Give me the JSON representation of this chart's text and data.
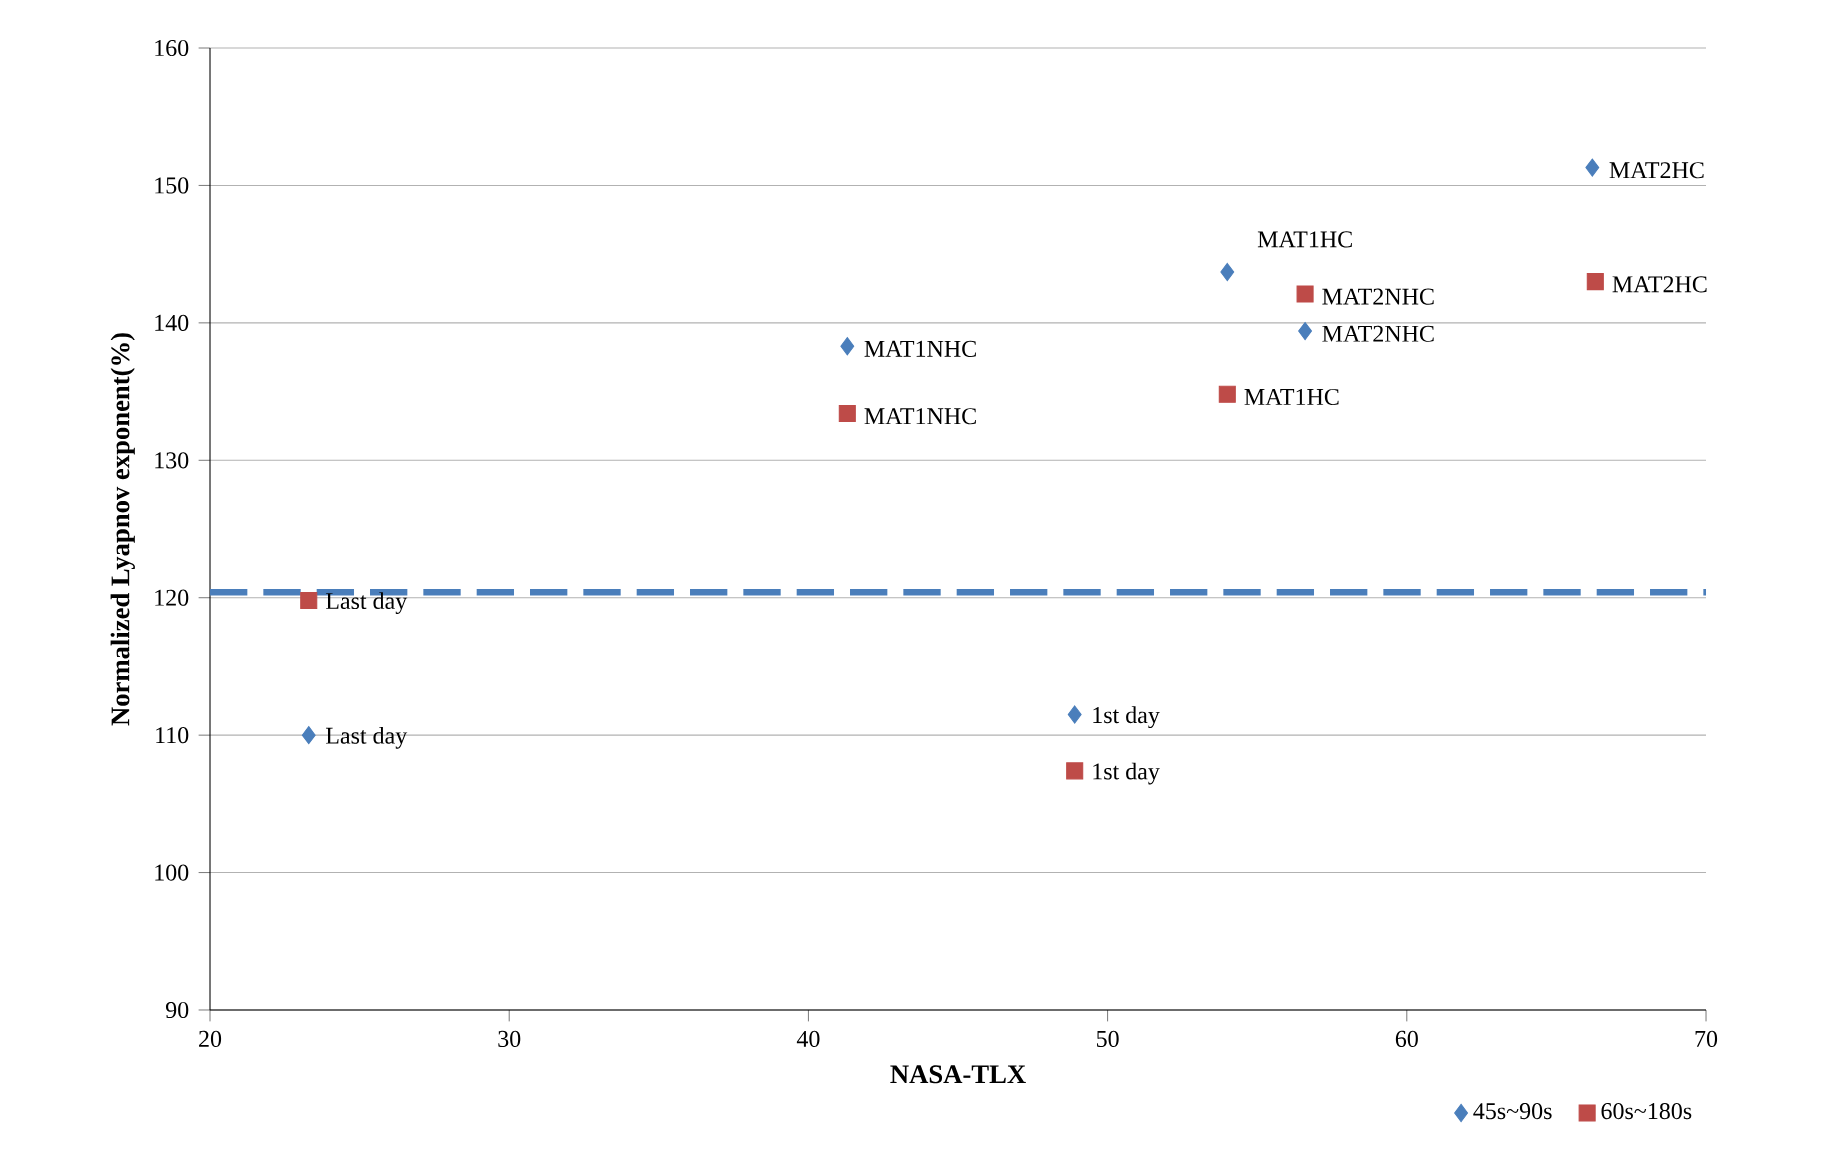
{
  "chart_data": {
    "type": "scatter",
    "xlabel": "NASA-TLX",
    "ylabel": "Normalized Lyapnov exponent(%)",
    "xlim": [
      20,
      70
    ],
    "xticks": [
      20,
      30,
      40,
      50,
      60,
      70
    ],
    "ylim": [
      90,
      160
    ],
    "yticks": [
      90,
      100,
      110,
      120,
      130,
      140,
      150,
      160
    ],
    "grid": "y",
    "legend": "bottom right",
    "series": [
      {
        "name": "45s~90s",
        "color": "#4a7ebb",
        "marker": "diamond",
        "x": [
          23.3,
          41.3,
          48.9,
          54.0,
          56.6,
          66.2
        ],
        "values": [
          110,
          138.3,
          111.5,
          143.7,
          139.4,
          151.3
        ]
      },
      {
        "name": "60s~180s",
        "color": "#be4b48",
        "marker": "square",
        "x": [
          23.3,
          41.3,
          48.9,
          54.0,
          56.6,
          66.3
        ],
        "values": [
          119.8,
          133.4,
          107.4,
          134.8,
          142.1,
          143.0
        ]
      }
    ],
    "ref_lines": [
      {
        "axis": "y",
        "value": 120.4,
        "color": "#4a7ebb",
        "line_style": "dashed"
      }
    ],
    "annotations": [
      {
        "text": "Last day",
        "x": 23.3,
        "y": 110
      },
      {
        "text": "MAT1NHC",
        "x": 41.3,
        "y": 138.3
      },
      {
        "text": "1st day",
        "x": 48.9,
        "y": 111.5
      },
      {
        "text": "MAT1HC",
        "x": 54.0,
        "y": 143.7
      },
      {
        "text": "MAT2NHC",
        "x": 56.6,
        "y": 139.4
      },
      {
        "text": "MAT2HC",
        "x": 66.2,
        "y": 151.3
      },
      {
        "text": "Last day",
        "x": 23.3,
        "y": 119.8
      },
      {
        "text": "MAT1NHC",
        "x": 41.3,
        "y": 133.4
      },
      {
        "text": "1st day",
        "x": 48.9,
        "y": 107.4
      },
      {
        "text": "MAT1HC",
        "x": 54.0,
        "y": 134.8
      },
      {
        "text": "MAT2NHC",
        "x": 56.6,
        "y": 142.1
      },
      {
        "text": "MAT2HC",
        "x": 66.3,
        "y": 143.0
      }
    ]
  }
}
